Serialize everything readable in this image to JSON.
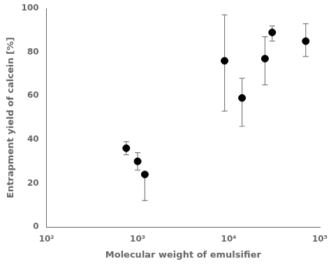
{
  "chart_data": {
    "type": "scatter",
    "x": [
      750,
      1000,
      1200,
      9000,
      14000,
      25000,
      30000,
      70000
    ],
    "values": [
      36,
      30,
      24,
      76,
      59,
      77,
      89,
      85
    ],
    "yerr_low": [
      3,
      4,
      12,
      23,
      13,
      12,
      4,
      7
    ],
    "yerr_high": [
      3,
      4,
      0,
      21,
      9,
      10,
      3,
      8
    ],
    "xlabel": "Molecular weight of emulsifier",
    "ylabel": "Entrapment yield of calcein [%]",
    "log": "x",
    "xlim": [
      100,
      100000
    ],
    "xticks": [
      {
        "value": 100,
        "label": "10²"
      },
      {
        "value": 1000,
        "label": "10³"
      },
      {
        "value": 10000,
        "label": "10⁴"
      },
      {
        "value": 100000,
        "label": "10⁵"
      }
    ],
    "ylim": [
      0,
      100
    ],
    "yticks": [
      0,
      20,
      40,
      60,
      80,
      100
    ],
    "color": "black",
    "marker": "circle",
    "grid": false
  }
}
